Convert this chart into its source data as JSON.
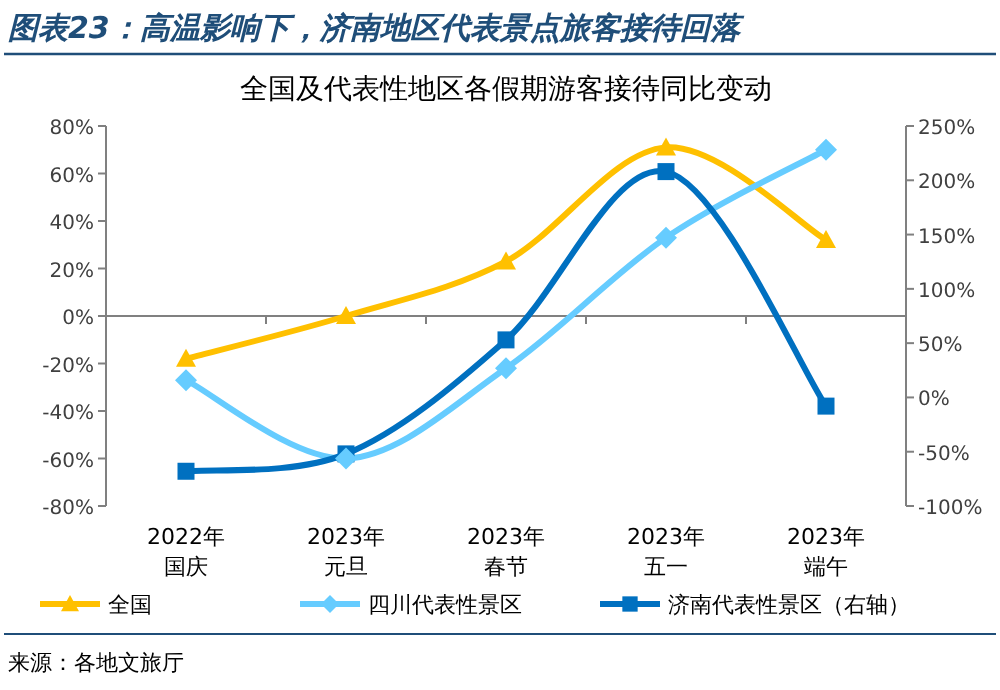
{
  "chart_data": {
    "type": "line",
    "title": "图表23：高温影响下，济南地区代表景点旅客接待回落",
    "subtitle": "全国及代表性地区各假期游客接待同比变动",
    "categories": [
      "2022年国庆",
      "2023年元旦",
      "2023年春节",
      "2023年五一",
      "2023年端午"
    ],
    "series": [
      {
        "name": "全国",
        "color": "#ffc000",
        "marker": "triangle",
        "values": [
          -18,
          0,
          23,
          71,
          32
        ]
      },
      {
        "name": "四川代表性景区",
        "color": "#66ccff",
        "marker": "diamond",
        "values": [
          -27,
          -60,
          -22,
          33,
          70
        ]
      },
      {
        "name": "济南代表性景区（右轴）",
        "color": "#0070c0",
        "marker": "square",
        "axis": "y2",
        "values": [
          -68,
          -52,
          53,
          208,
          -8
        ]
      }
    ],
    "ylim": [
      -80,
      80
    ],
    "yticks": [
      {
        "value": -80,
        "label": "-80%"
      },
      {
        "value": -60,
        "label": "-60%"
      },
      {
        "value": -40,
        "label": "-40%"
      },
      {
        "value": -20,
        "label": "-20%"
      },
      {
        "value": 0,
        "label": "0%"
      },
      {
        "value": 20,
        "label": "20%"
      },
      {
        "value": 40,
        "label": "40%"
      },
      {
        "value": 60,
        "label": "60%"
      },
      {
        "value": 80,
        "label": "80%"
      }
    ],
    "y2lim": [
      -100,
      250
    ],
    "y2ticks": [
      {
        "value": -100,
        "label": "-100%"
      },
      {
        "value": -50,
        "label": "-50%"
      },
      {
        "value": 0,
        "label": "0%"
      },
      {
        "value": 50,
        "label": "50%"
      },
      {
        "value": 100,
        "label": "100%"
      },
      {
        "value": 150,
        "label": "150%"
      },
      {
        "value": 200,
        "label": "200%"
      },
      {
        "value": 250,
        "label": "250%"
      }
    ],
    "legend": "bottom",
    "annotations": [
      "来源：各地文旅厅"
    ]
  }
}
